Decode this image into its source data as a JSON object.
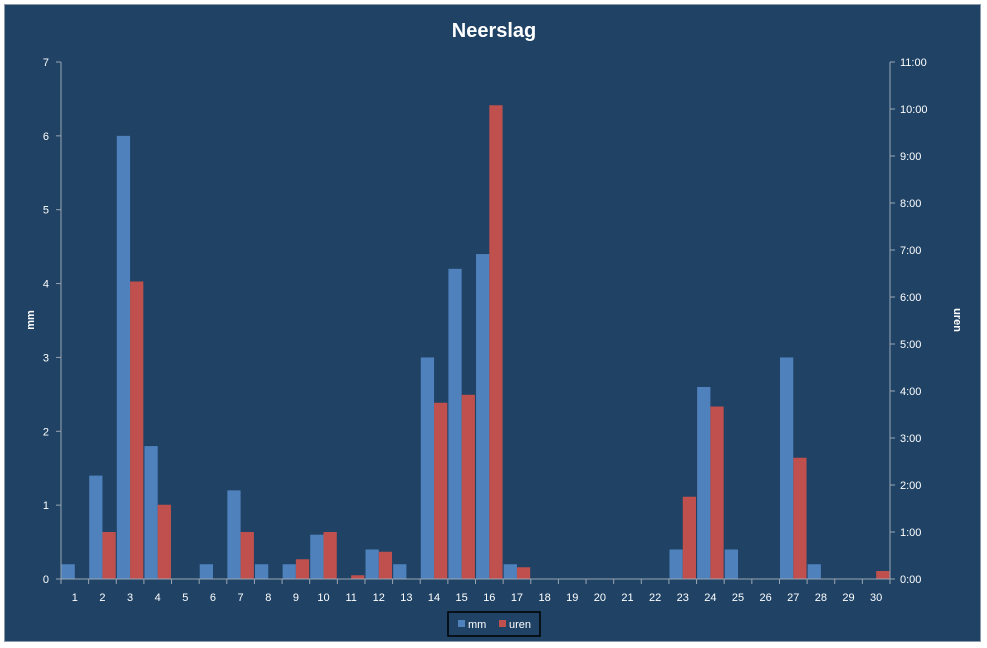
{
  "chart_data": {
    "type": "bar",
    "title": "Neerslag",
    "categories": [
      "1",
      "2",
      "3",
      "4",
      "5",
      "6",
      "7",
      "8",
      "9",
      "10",
      "11",
      "12",
      "13",
      "14",
      "15",
      "16",
      "17",
      "18",
      "19",
      "20",
      "21",
      "22",
      "23",
      "24",
      "25",
      "26",
      "27",
      "28",
      "29",
      "30"
    ],
    "series": [
      {
        "name": "mm",
        "axis": "left",
        "color": "#4f81bd",
        "values": [
          0.2,
          1.4,
          6.0,
          1.8,
          0,
          0.2,
          1.2,
          0.2,
          0.2,
          0.6,
          0,
          0.4,
          0.2,
          3.0,
          4.2,
          4.4,
          0.2,
          0,
          0,
          0,
          0,
          0,
          0.4,
          2.6,
          0.4,
          0,
          3.0,
          0.2,
          0,
          0
        ]
      },
      {
        "name": "uren",
        "axis": "right",
        "color": "#c0504d",
        "values": [
          0,
          1.0,
          6.33,
          1.58,
          0,
          0,
          1.0,
          0,
          0.42,
          1.0,
          0.08,
          0.58,
          0,
          3.75,
          3.92,
          10.08,
          0.25,
          0,
          0,
          0,
          0,
          0,
          1.75,
          3.67,
          0,
          0,
          2.58,
          0,
          0,
          0.17
        ]
      }
    ],
    "y_left": {
      "label": "mm",
      "range": [
        0,
        7
      ],
      "ticks": [
        "0",
        "1",
        "2",
        "3",
        "4",
        "5",
        "6",
        "7"
      ]
    },
    "y_right": {
      "label": "uren",
      "range": [
        0,
        11
      ],
      "ticks": [
        "0:00",
        "1:00",
        "2:00",
        "3:00",
        "4:00",
        "5:00",
        "6:00",
        "7:00",
        "8:00",
        "9:00",
        "10:00",
        "11:00"
      ]
    },
    "grid": false,
    "legend": "bottom"
  }
}
